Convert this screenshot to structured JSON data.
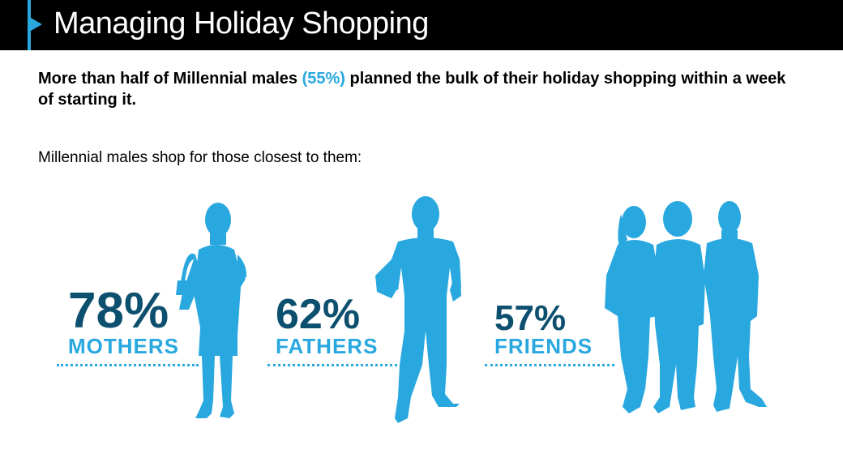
{
  "header": {
    "title": "Managing Holiday Shopping"
  },
  "headline": {
    "before": "More than half of Millennial males ",
    "highlight": "(55%)",
    "after": " planned the bulk of their holiday shopping within a week of starting it."
  },
  "subline": "Millennial males shop for those closest to them:",
  "stats": [
    {
      "value": "78%",
      "label": "MOTHERS",
      "icon": "woman-silhouette-icon"
    },
    {
      "value": "62%",
      "label": "FATHERS",
      "icon": "man-silhouette-icon"
    },
    {
      "value": "57%",
      "label": "FRIENDS",
      "icon": "friends-group-silhouette-icon"
    }
  ],
  "colors": {
    "accent": "#29a8e0",
    "dark_value": "#0d4f6e",
    "header_bg": "#000000"
  }
}
